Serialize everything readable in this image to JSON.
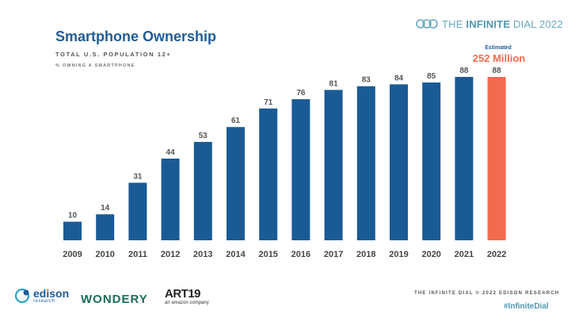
{
  "brand": {
    "prefix": "THE ",
    "bold": "INFINITE",
    "suffix": " DIAL 2022",
    "icon": "infinity-rings-icon"
  },
  "title": "Smartphone Ownership",
  "subtitle": "TOTAL U.S. POPULATION 12+",
  "subnote": "% OWNING A SMARTPHONE",
  "estimate": {
    "label": "Estimated",
    "value": "252 Million"
  },
  "logos": {
    "edison": {
      "word": "edison",
      "sub": "research"
    },
    "wondery": "WONDERY",
    "art19": {
      "word": "ART19",
      "sub": "an amazon company"
    }
  },
  "footer": {
    "credit": "THE INFINITE DIAL  © 2022 EDISON RESEARCH",
    "hashtag": "#InfiniteDial"
  },
  "colors": {
    "bar": "#1a5b96",
    "highlight": "#f26b4f",
    "label": "#555555"
  },
  "chart_data": {
    "type": "bar",
    "categories": [
      "2009",
      "2010",
      "2011",
      "2012",
      "2013",
      "2014",
      "2015",
      "2016",
      "2017",
      "2018",
      "2019",
      "2020",
      "2021",
      "2022"
    ],
    "values": [
      10,
      14,
      31,
      44,
      53,
      61,
      71,
      76,
      81,
      83,
      84,
      85,
      88,
      88
    ],
    "highlight_index": 13,
    "ylim": [
      0,
      100
    ],
    "grid": false,
    "legend": "none",
    "title": "Smartphone Ownership",
    "xlabel": "",
    "ylabel": ""
  }
}
